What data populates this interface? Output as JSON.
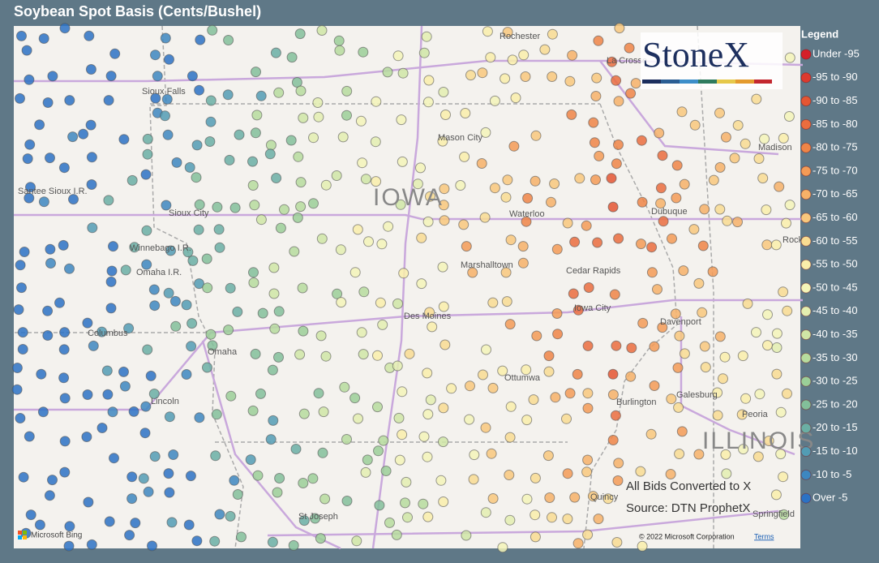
{
  "title": "Soybean Spot Basis (Cents/Bushel)",
  "legend": {
    "title": "Legend",
    "items": [
      {
        "label": "Under -95",
        "color": "#d52029"
      },
      {
        "label": "-95 to -90",
        "color": "#dc3a2e"
      },
      {
        "label": "-90 to -85",
        "color": "#e45633"
      },
      {
        "label": "-85 to -80",
        "color": "#ea6d3e"
      },
      {
        "label": "-80 to -75",
        "color": "#ef8547"
      },
      {
        "label": "-75 to -70",
        "color": "#f39b56"
      },
      {
        "label": "-70 to -65",
        "color": "#f6b168"
      },
      {
        "label": "-65 to -60",
        "color": "#f8c87d"
      },
      {
        "label": "-60 to -55",
        "color": "#f8dc92"
      },
      {
        "label": "-55 to -50",
        "color": "#f9eeaa"
      },
      {
        "label": "-50 to -45",
        "color": "#f3f5b8"
      },
      {
        "label": "-45 to -40",
        "color": "#e3efb0"
      },
      {
        "label": "-40 to -35",
        "color": "#cfe6a6"
      },
      {
        "label": "-35 to -30",
        "color": "#b6dc9e"
      },
      {
        "label": "-30 to -25",
        "color": "#9bcf98"
      },
      {
        "label": "-25 to -20",
        "color": "#82bf9a"
      },
      {
        "label": "-20 to -15",
        "color": "#6aafa4"
      },
      {
        "label": "-15 to -10",
        "color": "#529cb4"
      },
      {
        "label": "-10 to -5",
        "color": "#3d87c0"
      },
      {
        "label": "Over -5",
        "color": "#2b72c4"
      }
    ]
  },
  "logo": "StoneX",
  "cities": [
    "Rochester",
    "La Crosse",
    "Madison",
    "Mason City",
    "IOWA",
    "Waterloo",
    "Dubuque",
    "Sioux City",
    "Sioux Falls",
    "Marshalltown",
    "Cedar Rapids",
    "Iowa City",
    "Davenport",
    "Des Moines",
    "Columbus",
    "Omaha",
    "Lincoln",
    "Ottumwa",
    "Burlington",
    "Galesburg",
    "Peoria",
    "ILLINOIS",
    "Quincy",
    "St Joseph",
    "Springfield",
    "Rock",
    "Winnebago I.R.",
    "Omaha I.R.",
    "Santee Sioux I.R."
  ],
  "notes": [
    "All Bids Converted to X",
    "Source: DTN ProphetX"
  ],
  "attribution": {
    "provider": "Microsoft Bing",
    "copyright": "© 2022 Microsoft Corporation",
    "terms": "Terms"
  }
}
